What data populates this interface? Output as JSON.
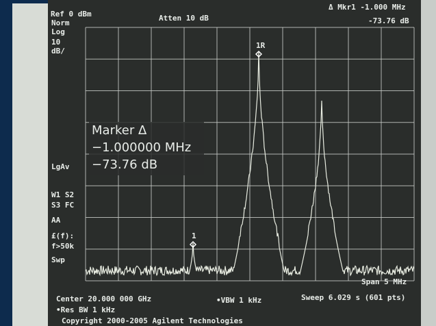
{
  "header": {
    "ref": "Ref 0 dBm",
    "atten": "Atten 10 dB",
    "marker_label": "Δ Mkr1  -1.000 MHz",
    "marker_value": "-73.76 dB"
  },
  "left_panel": {
    "lines": [
      "Norm",
      "Log",
      "10",
      "dB/",
      "LgAv",
      "W1  S2",
      "S3  FC",
      "AA",
      "£(f):",
      "f>50k",
      "Swp"
    ]
  },
  "marker_box": {
    "title": "Marker Δ",
    "freq": "−1.000000 MHz",
    "level": "−73.76 dB"
  },
  "trace_markers": {
    "main": "1R",
    "delta": "1"
  },
  "footer": {
    "center": "Center 20.000 000 GHz",
    "span": "Span 5 MHz",
    "res_bw": "•Res BW 1 kHz",
    "vbw": "•VBW 1 kHz",
    "sweep": "Sweep 6.029 s (601 pts)",
    "copyright": "Copyright 2000-2005 Agilent Technologies"
  }
}
